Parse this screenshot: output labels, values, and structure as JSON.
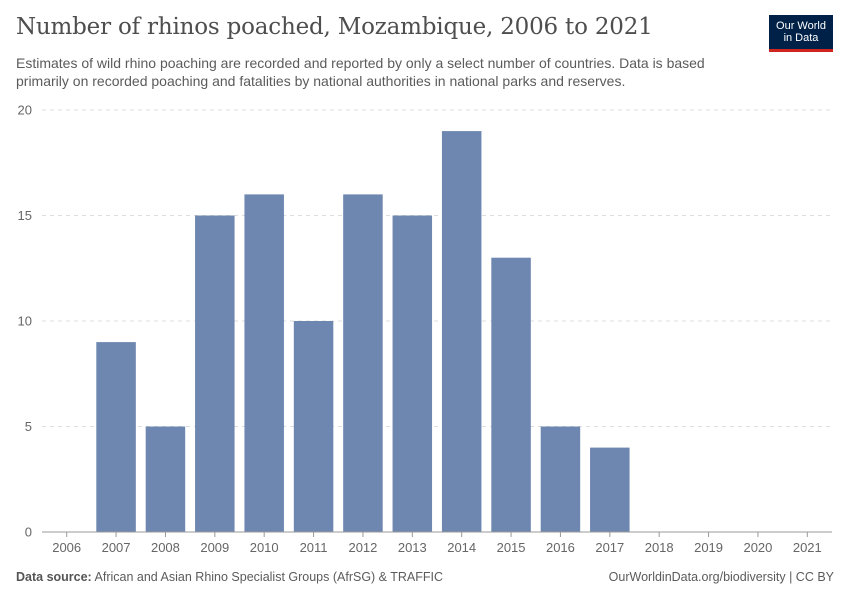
{
  "header": {
    "title": "Number of rhinos poached, Mozambique, 2006 to 2021",
    "subtitle": "Estimates of wild rhino poaching are recorded and reported by only a select number of countries. Data is based primarily on recorded poaching and fatalities by national authorities in national parks and reserves."
  },
  "logo": {
    "line1": "Our World",
    "line2": "in Data"
  },
  "footer": {
    "source_label": "Data source:",
    "source_text": "African and Asian Rhino Specialist Groups (AfrSG) & TRAFFIC",
    "link_text": "OurWorldinData.org/biodiversity | CC BY"
  },
  "colors": {
    "bar": "#6d87b0",
    "grid": "#dddddd",
    "axis": "#999999",
    "logo_bg": "#002147",
    "logo_accent": "#ce261e"
  },
  "chart_data": {
    "type": "bar",
    "title": "Number of rhinos poached, Mozambique, 2006 to 2021",
    "categories": [
      "2006",
      "2007",
      "2008",
      "2009",
      "2010",
      "2011",
      "2012",
      "2013",
      "2014",
      "2015",
      "2016",
      "2017",
      "2018",
      "2019",
      "2020",
      "2021"
    ],
    "values": [
      0,
      9,
      5,
      15,
      16,
      10,
      16,
      15,
      19,
      13,
      5,
      4,
      0,
      0,
      0,
      0
    ],
    "yticks": [
      0,
      5,
      10,
      15,
      20
    ],
    "ylim": [
      0,
      20
    ],
    "xlabel": "",
    "ylabel": "",
    "grid": "horizontal dashed"
  }
}
